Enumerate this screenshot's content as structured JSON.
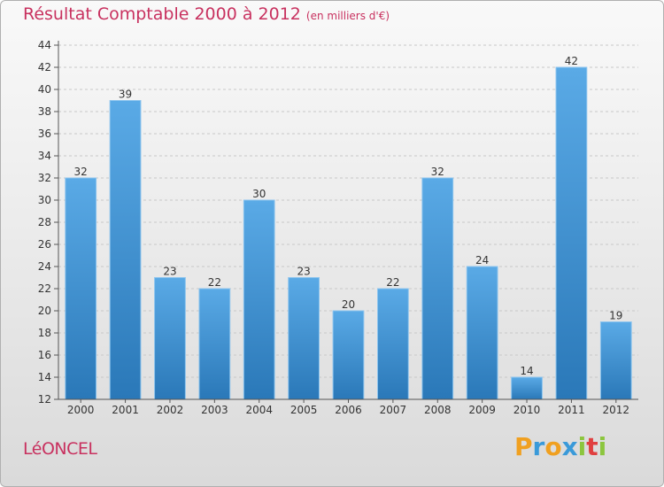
{
  "title": "Résultat Comptable 2000 à 2012",
  "subtitle": "(en milliers d'€)",
  "commune": "LéONCEL",
  "logo": {
    "letters": [
      "P",
      "r",
      "o",
      "x",
      "i",
      "t",
      "i"
    ],
    "colors": [
      "#f0a020",
      "#3a9ad9",
      "#f0a020",
      "#3a9ad9",
      "#8cc63e",
      "#e04040",
      "#8cc63e"
    ]
  },
  "colors": {
    "bar_top": "#5aaae6",
    "bar_bottom": "#2a78b8",
    "title": "#c8315f"
  },
  "chart_data": {
    "type": "bar",
    "categories": [
      "2000",
      "2001",
      "2002",
      "2003",
      "2004",
      "2005",
      "2006",
      "2007",
      "2008",
      "2009",
      "2010",
      "2011",
      "2012"
    ],
    "values": [
      32,
      39,
      23,
      22,
      30,
      23,
      20,
      22,
      32,
      24,
      14,
      42,
      19
    ],
    "yticks": [
      12,
      14,
      16,
      18,
      20,
      22,
      24,
      26,
      28,
      30,
      32,
      34,
      36,
      38,
      40,
      42,
      44
    ],
    "ylim": [
      12,
      44
    ],
    "grid": true,
    "legend": "none"
  }
}
